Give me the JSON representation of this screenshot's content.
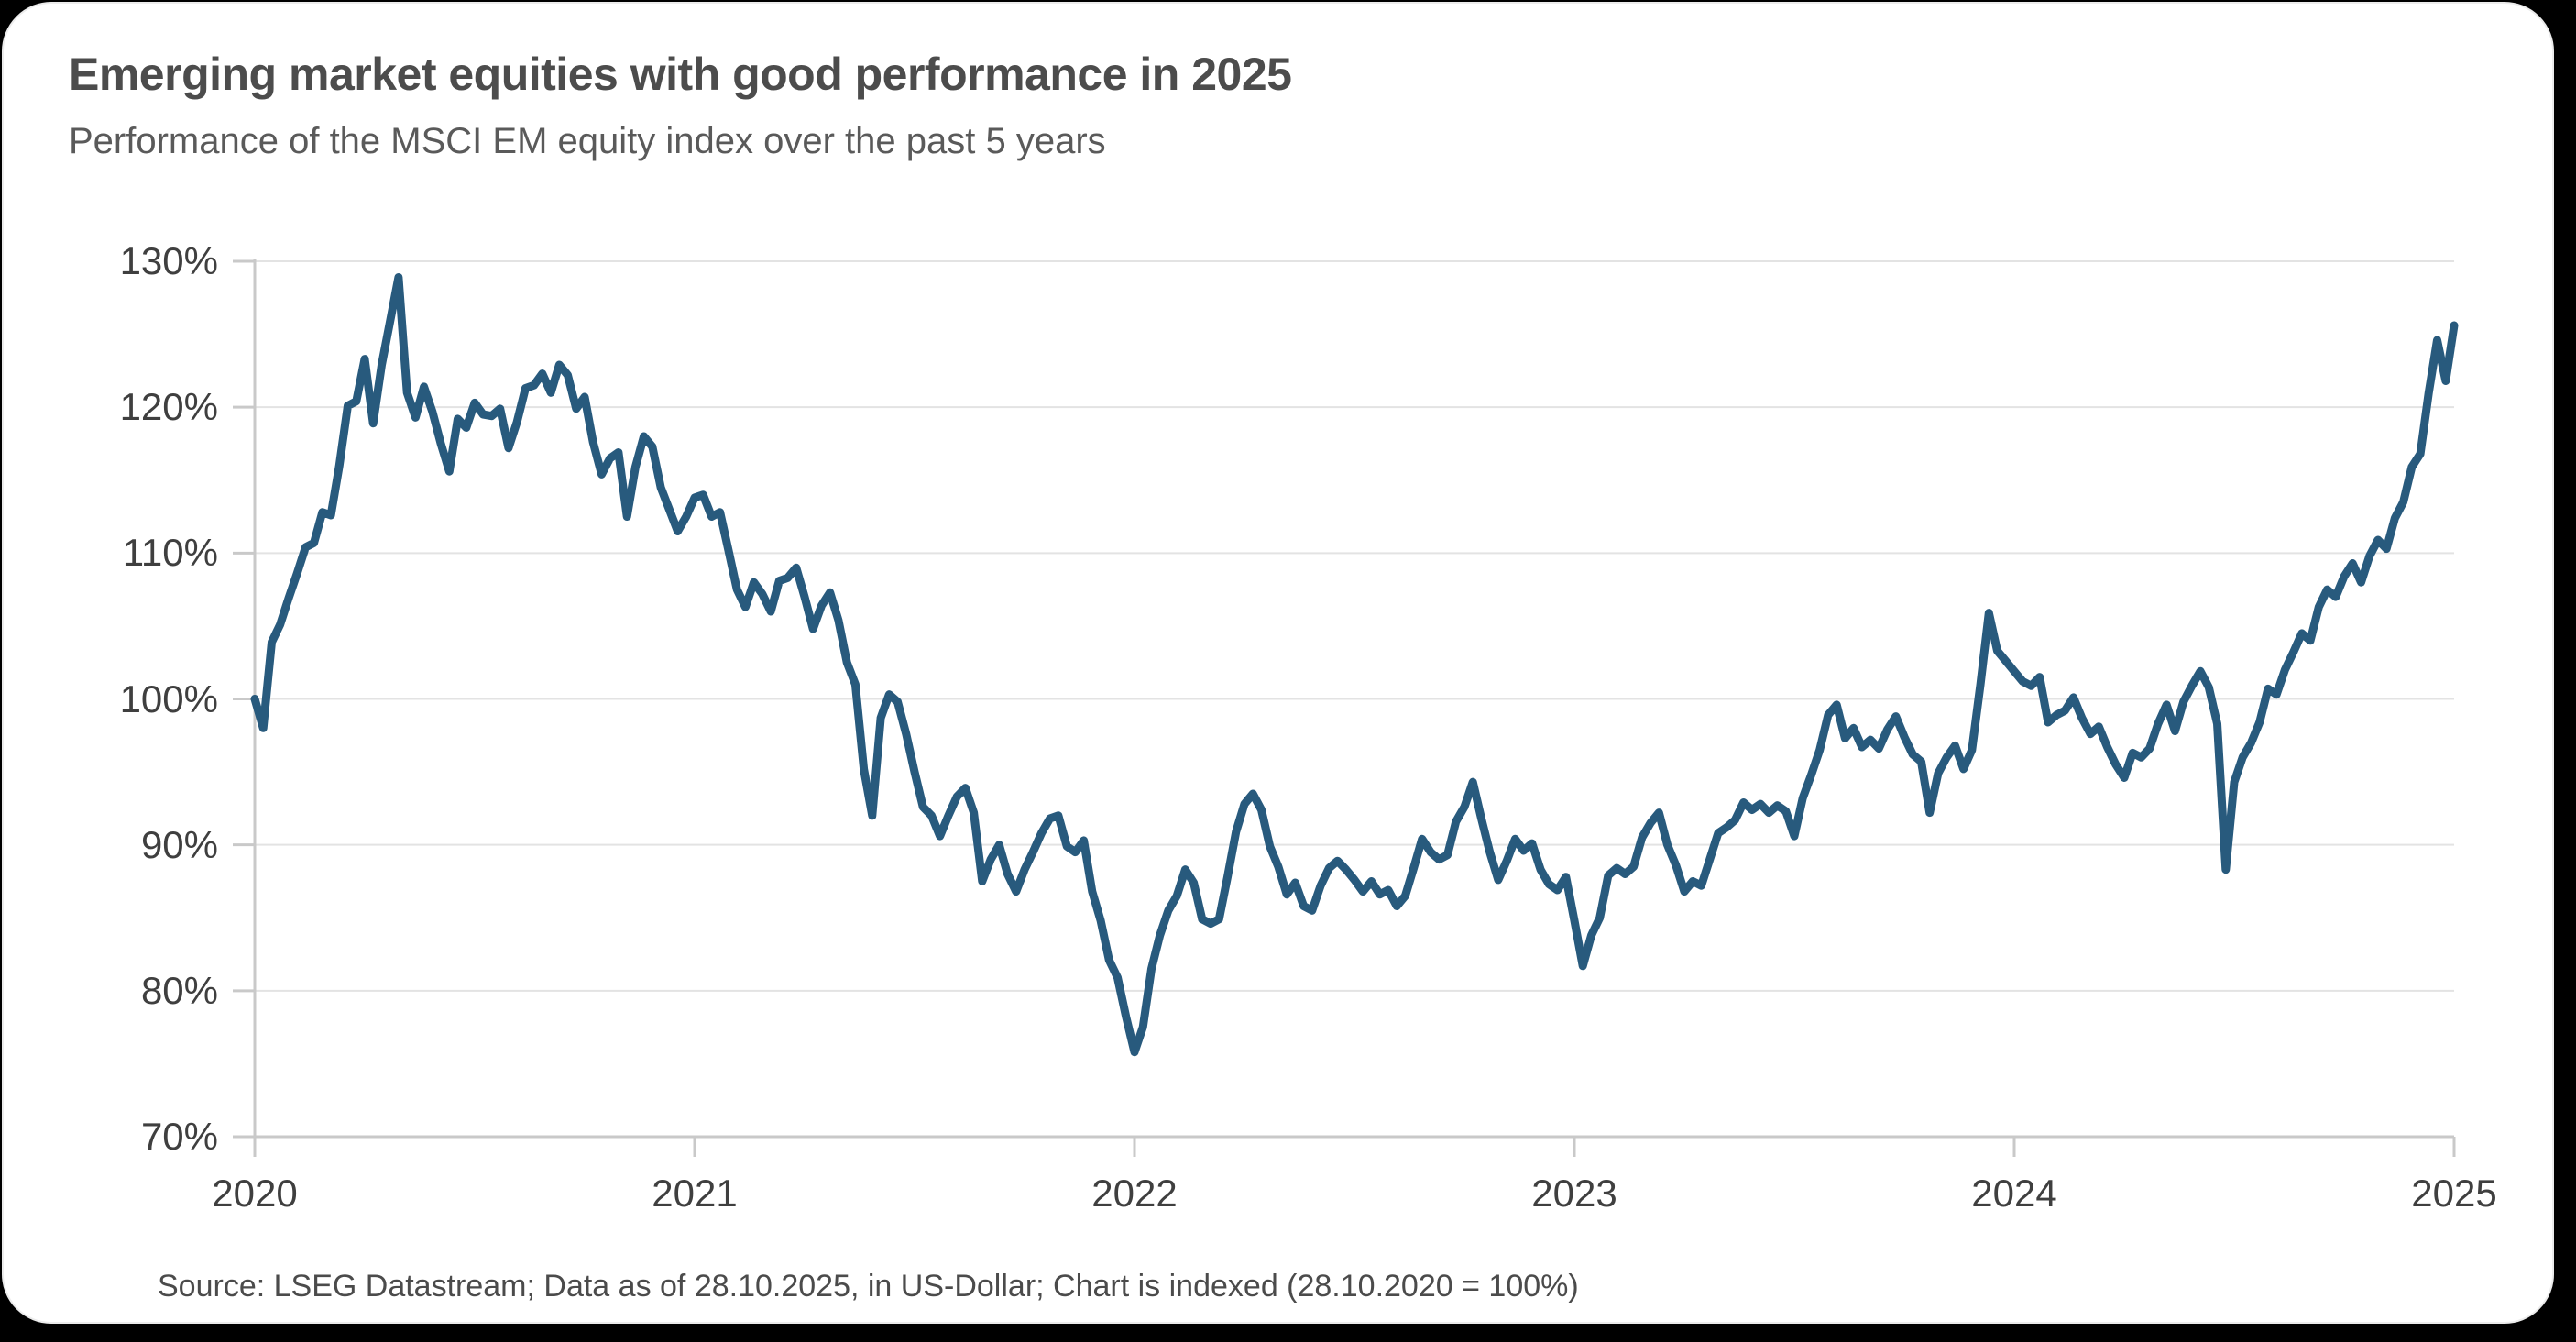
{
  "page": {
    "background_color": "#000000",
    "card_background_color": "#ffffff"
  },
  "header": {
    "title": "Emerging market equities with good performance in 2025",
    "subtitle": "Performance of the MSCI EM equity index over the past 5 years"
  },
  "chart_data": {
    "type": "line",
    "title": "Emerging market equities with good performance in 2025",
    "subtitle": "Performance of the MSCI EM equity index over the past 5 years",
    "series_name": "MSCI EM equity index, indexed (28.10.2020 = 100%)",
    "x_tick_labels": [
      "2020",
      "2021",
      "2022",
      "2023",
      "2024",
      "2025"
    ],
    "y_tick_labels": [
      "130%",
      "120%",
      "110%",
      "100%",
      "90%",
      "80%",
      "70%"
    ],
    "y_tick_values": [
      130,
      120,
      110,
      100,
      90,
      80,
      70
    ],
    "ylim": [
      70,
      130
    ],
    "x_start": "28.10.2020",
    "x_end": "28.10.2025",
    "frequency": "weekly",
    "points_per_year": 52,
    "grid": true,
    "legend": "none",
    "line_color": "#285a7d",
    "grid_color": "#e3e3e3",
    "axis_color": "#c9c9c9",
    "values": [
      100.0,
      98.0,
      103.9,
      105.1,
      106.9,
      108.6,
      110.4,
      110.7,
      112.8,
      112.6,
      116.0,
      120.1,
      120.4,
      123.3,
      118.9,
      122.9,
      125.9,
      128.9,
      121.0,
      119.3,
      121.4,
      119.7,
      117.5,
      115.6,
      119.2,
      118.6,
      120.3,
      119.5,
      119.4,
      119.9,
      117.2,
      119.0,
      121.3,
      121.5,
      122.3,
      121.0,
      122.9,
      122.2,
      119.9,
      120.7,
      117.6,
      115.4,
      116.5,
      116.9,
      112.5,
      115.9,
      118.0,
      117.3,
      114.5,
      113.0,
      111.5,
      112.5,
      113.8,
      114.0,
      112.5,
      112.8,
      110.2,
      107.5,
      106.3,
      108.0,
      107.2,
      106.0,
      108.1,
      108.3,
      109.0,
      107.0,
      104.8,
      106.4,
      107.3,
      105.4,
      102.5,
      101.0,
      95.2,
      92.0,
      98.7,
      100.3,
      99.8,
      97.6,
      95.0,
      92.6,
      92.0,
      90.6,
      92.0,
      93.3,
      93.9,
      92.2,
      87.5,
      89.0,
      90.0,
      88.0,
      86.8,
      88.3,
      89.5,
      90.8,
      91.8,
      92.0,
      89.9,
      89.5,
      90.3,
      86.8,
      84.8,
      82.1,
      80.9,
      78.2,
      75.8,
      77.5,
      81.5,
      83.8,
      85.5,
      86.5,
      88.3,
      87.4,
      84.9,
      84.6,
      84.9,
      87.8,
      90.9,
      92.8,
      93.5,
      92.4,
      89.9,
      88.5,
      86.6,
      87.4,
      85.8,
      85.5,
      87.2,
      88.4,
      88.9,
      88.3,
      87.6,
      86.8,
      87.5,
      86.6,
      86.9,
      85.8,
      86.5,
      88.4,
      90.4,
      89.5,
      89.0,
      89.3,
      91.6,
      92.6,
      94.3,
      91.8,
      89.5,
      87.6,
      88.9,
      90.4,
      89.6,
      90.1,
      88.3,
      87.3,
      86.9,
      87.8,
      84.8,
      81.7,
      83.8,
      85.0,
      87.9,
      88.4,
      88.0,
      88.5,
      90.5,
      91.5,
      92.2,
      90.0,
      88.6,
      86.8,
      87.5,
      87.2,
      89.0,
      90.8,
      91.2,
      91.7,
      92.9,
      92.4,
      92.8,
      92.2,
      92.7,
      92.3,
      90.6,
      93.2,
      94.8,
      96.5,
      98.9,
      99.6,
      97.3,
      98.0,
      96.7,
      97.2,
      96.6,
      97.9,
      98.8,
      97.4,
      96.2,
      95.7,
      92.2,
      94.9,
      96.0,
      96.8,
      95.2,
      96.5,
      101.0,
      105.9,
      103.3,
      102.6,
      101.9,
      101.2,
      100.9,
      101.5,
      98.4,
      98.9,
      99.2,
      100.1,
      98.7,
      97.6,
      98.1,
      96.7,
      95.5,
      94.6,
      96.3,
      96.0,
      96.6,
      98.3,
      99.6,
      97.8,
      99.8,
      100.9,
      101.9,
      100.8,
      98.3,
      88.3,
      94.3,
      96.0,
      97.0,
      98.4,
      100.7,
      100.3,
      102.0,
      103.2,
      104.5,
      104.0,
      106.3,
      107.5,
      107.0,
      108.4,
      109.3,
      108.0,
      109.8,
      110.9,
      110.3,
      112.4,
      113.5,
      115.9,
      116.8,
      121.0,
      124.6,
      121.8,
      125.6
    ]
  },
  "footer": {
    "source": "Source: LSEG Datastream; Data as of 28.10.2025, in US-Dollar; Chart is indexed (28.10.2020 = 100%)"
  }
}
